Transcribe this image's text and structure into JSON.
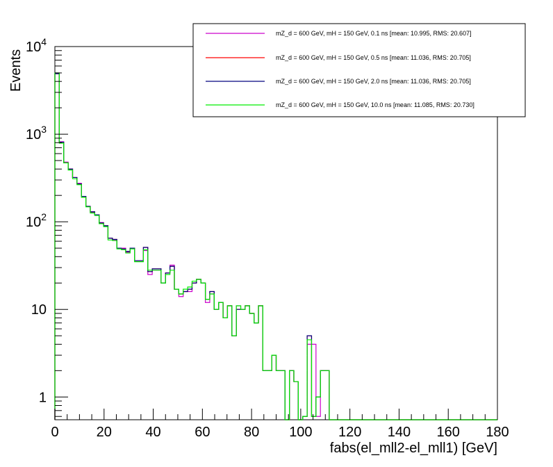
{
  "chart_data": {
    "type": "histogram-step",
    "title": "",
    "xlabel": "fabs(el_mll2-el_mll1) [GeV]",
    "ylabel": "Events",
    "xlim": [
      0,
      180
    ],
    "ylim": [
      0.55,
      10000
    ],
    "yscale": "log",
    "x_ticks": [
      "0",
      "20",
      "40",
      "60",
      "80",
      "100",
      "120",
      "140",
      "160",
      "180"
    ],
    "y_ticks": [
      {
        "value": 1,
        "base": "1",
        "exp": ""
      },
      {
        "value": 10,
        "base": "10",
        "exp": ""
      },
      {
        "value": 100,
        "base": "10",
        "exp": "2"
      },
      {
        "value": 1000,
        "base": "10",
        "exp": "3"
      },
      {
        "value": 10000,
        "base": "10",
        "exp": "4"
      }
    ],
    "bin_width": 1.8,
    "legend_position": "top-right",
    "series": [
      {
        "name": "mZ_d = 600 GeV, mH = 150 GeV, 0.1 ns [mean: 10.995, RMS: 20.607]",
        "color": "#cc00cc",
        "values": [
          5000,
          820,
          480,
          400,
          320,
          275,
          195,
          150,
          128,
          120,
          98,
          90,
          65,
          62,
          50,
          50,
          45,
          50,
          36,
          36,
          47,
          25,
          28,
          28,
          20,
          26,
          32,
          17,
          14,
          16,
          16,
          20,
          22,
          20,
          12,
          15,
          10,
          12,
          8,
          11,
          5,
          11,
          10,
          11,
          9,
          7,
          11,
          2,
          2,
          3,
          2,
          2,
          0,
          2,
          1.5,
          0,
          0.6,
          4,
          4,
          0.6,
          2,
          2
        ]
      },
      {
        "name": "mZ_d = 600 GeV, mH = 150 GeV, 0.5 ns [mean: 11.036, RMS: 20.705]",
        "color": "#ff0000",
        "values": [
          4900,
          810,
          470,
          400,
          320,
          270,
          195,
          150,
          130,
          120,
          97,
          90,
          65,
          63,
          50,
          49,
          46,
          50,
          36,
          36,
          51,
          27,
          29,
          29,
          20,
          26,
          31,
          17,
          15,
          16,
          17,
          20,
          22,
          20,
          13,
          16,
          10,
          12,
          8,
          11,
          5,
          10,
          10,
          11,
          9,
          7,
          11,
          2,
          2,
          3,
          2,
          2,
          0,
          2,
          1.5,
          0,
          0.6,
          5,
          0.6,
          1,
          2,
          2
        ]
      },
      {
        "name": "mZ_d = 600 GeV, mH = 150 GeV, 2.0 ns [mean: 11.036, RMS: 20.705]",
        "color": "#00007f",
        "values": [
          4900,
          810,
          470,
          400,
          320,
          270,
          195,
          150,
          130,
          120,
          97,
          90,
          65,
          63,
          50,
          49,
          46,
          50,
          36,
          36,
          51,
          27,
          29,
          29,
          20,
          26,
          31,
          17,
          15,
          16,
          17,
          20,
          22,
          20,
          13,
          16,
          10,
          12,
          8,
          11,
          5,
          10,
          10,
          11,
          9,
          7,
          11,
          2,
          2,
          3,
          2,
          2,
          0,
          2,
          1.5,
          0,
          0.6,
          5,
          0.6,
          1,
          2,
          2
        ]
      },
      {
        "name": "mZ_d = 600 GeV, mH = 150 GeV, 10.0 ns [mean: 11.085, RMS: 20.730]",
        "color": "#00ee00",
        "values": [
          5000,
          790,
          470,
          390,
          310,
          265,
          190,
          148,
          126,
          118,
          95,
          88,
          62,
          61,
          49,
          48,
          44,
          49,
          35,
          35,
          48,
          28,
          28,
          28,
          20,
          25,
          28,
          17,
          15,
          17,
          18,
          21,
          22,
          20,
          13,
          15,
          10,
          12,
          8,
          11,
          5,
          11,
          10,
          11,
          9,
          7,
          11,
          2,
          2,
          3,
          2,
          2,
          0,
          2,
          1.5,
          0,
          0.6,
          4.5,
          0.6,
          1,
          2,
          2
        ]
      }
    ]
  }
}
